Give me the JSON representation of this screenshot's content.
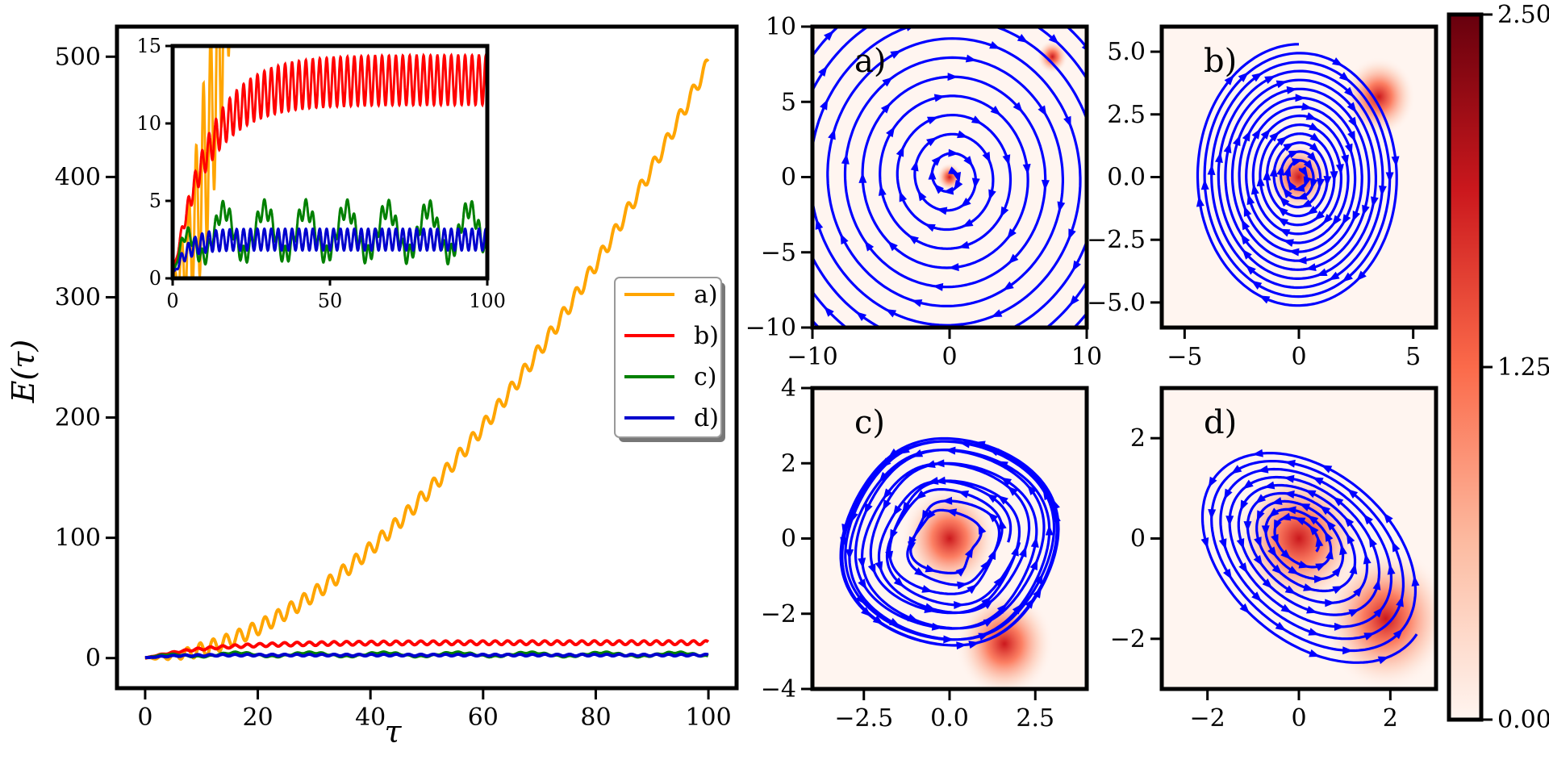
{
  "chart_data": [
    {
      "id": "main",
      "type": "line",
      "title": "",
      "xlabel": "τ",
      "ylabel": "E(τ)",
      "xlim": [
        -5,
        105
      ],
      "ylim": [
        -25,
        525
      ],
      "xticks": [
        0,
        20,
        40,
        60,
        80,
        100
      ],
      "yticks": [
        0,
        100,
        200,
        300,
        400,
        500
      ],
      "legend": {
        "placement": "center-right",
        "entries": [
          "a)",
          "b)",
          "c)",
          "d)"
        ]
      },
      "series": [
        {
          "name": "a)",
          "color": "#FFA500",
          "model": "growth",
          "final": 495,
          "osc_amp": 6,
          "osc_period": 2.3
        },
        {
          "name": "b)",
          "color": "#FF0000",
          "model": "saturating",
          "plateau": 12.8,
          "osc_amp": 1.6,
          "osc_period": 2.2
        },
        {
          "name": "c)",
          "color": "#008000",
          "model": "bounded",
          "mean": 3.0,
          "osc_amp": 1.5,
          "osc_period": 13
        },
        {
          "name": "d)",
          "color": "#0000CD",
          "model": "bounded",
          "mean": 2.5,
          "osc_amp": 0.7,
          "osc_period": 2.2
        }
      ]
    },
    {
      "id": "inset",
      "type": "line",
      "xlim": [
        0,
        100
      ],
      "ylim": [
        0,
        15
      ],
      "xticks": [
        0,
        50,
        100
      ],
      "yticks": [
        0,
        5,
        10,
        15
      ],
      "series_ref": "main"
    },
    {
      "id": "a",
      "type": "heatmap",
      "panel_label": "a)",
      "xlim": [
        -10,
        10
      ],
      "ylim": [
        -10,
        10
      ],
      "xticks": [
        -10,
        0,
        10
      ],
      "yticks": [
        -10,
        -5,
        0,
        5,
        10
      ],
      "blobs": [
        {
          "x": 0,
          "y": 0,
          "r": 0.6
        },
        {
          "x": 7.5,
          "y": 8,
          "r": 0.7
        }
      ],
      "trajectory": {
        "kind": "spiral",
        "turns": 11,
        "r_max": 14,
        "color": "#0000FF"
      }
    },
    {
      "id": "b",
      "type": "heatmap",
      "panel_label": "b)",
      "xlim": [
        -6,
        6
      ],
      "ylim": [
        -6,
        6
      ],
      "xticks": [
        -5,
        0,
        5
      ],
      "yticks": [
        -5.0,
        -2.5,
        0.0,
        2.5,
        5.0
      ],
      "ytick_labels": [
        "−5.0",
        "−2.5",
        "0.0",
        "2.5",
        "5.0"
      ],
      "blobs": [
        {
          "x": 0,
          "y": 0,
          "r": 0.9
        },
        {
          "x": 3.5,
          "y": 3.2,
          "r": 1.0
        }
      ],
      "trajectory": {
        "kind": "spiral",
        "turns": 14,
        "r_max": 5,
        "color": "#0000FF"
      }
    },
    {
      "id": "c",
      "type": "heatmap",
      "panel_label": "c)",
      "xlim": [
        -4,
        4
      ],
      "ylim": [
        -4,
        4
      ],
      "xticks": [
        -2.5,
        0.0,
        2.5
      ],
      "yticks": [
        -4,
        -2,
        0,
        2,
        4
      ],
      "xtick_labels": [
        "−2.5",
        "0.0",
        "2.5"
      ],
      "blobs": [
        {
          "x": 0,
          "y": 0,
          "r": 0.9
        },
        {
          "x": 1.6,
          "y": -2.8,
          "r": 0.9
        }
      ],
      "trajectory": {
        "kind": "tangle",
        "loops": 12,
        "r_max": 3.0,
        "color": "#0000FF"
      }
    },
    {
      "id": "d",
      "type": "heatmap",
      "panel_label": "d)",
      "xlim": [
        -3,
        3
      ],
      "ylim": [
        -3,
        3
      ],
      "xticks": [
        -2,
        0,
        2
      ],
      "yticks": [
        -2,
        0,
        2
      ],
      "blobs": [
        {
          "x": 0,
          "y": 0,
          "r": 0.9
        },
        {
          "x": 1.9,
          "y": -1.6,
          "r": 0.9
        }
      ],
      "trajectory": {
        "kind": "ellipse",
        "turns": 9,
        "r_max": 2.4,
        "color": "#0000FF"
      }
    },
    {
      "id": "colorbar",
      "type": "colorbar",
      "range": [
        0.0,
        2.5
      ],
      "tick_labels": [
        "0.00",
        "1.25",
        "2.50"
      ],
      "colors": [
        "#FFF5F0",
        "#FCBBA1",
        "#FB6A4A",
        "#CB181D",
        "#67000D"
      ]
    }
  ]
}
